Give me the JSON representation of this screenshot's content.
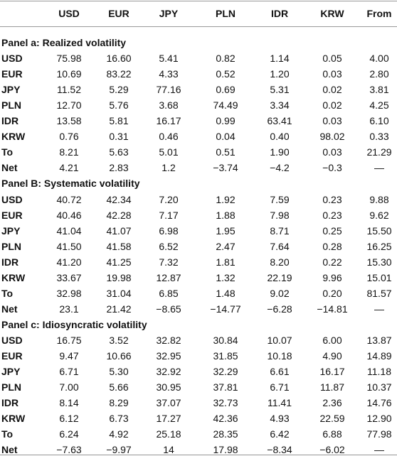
{
  "table": {
    "header": [
      "USD",
      "EUR",
      "JPY",
      "PLN",
      "IDR",
      "KRW",
      "From"
    ],
    "panels": [
      {
        "title": "Panel a: Realized volatility",
        "rows": [
          [
            "USD",
            "75.98",
            "16.60",
            "5.41",
            "0.82",
            "1.14",
            "0.05",
            "4.00"
          ],
          [
            "EUR",
            "10.69",
            "83.22",
            "4.33",
            "0.52",
            "1.20",
            "0.03",
            "2.80"
          ],
          [
            "JPY",
            "11.52",
            "5.29",
            "77.16",
            "0.69",
            "5.31",
            "0.02",
            "3.81"
          ],
          [
            "PLN",
            "12.70",
            "5.76",
            "3.68",
            "74.49",
            "3.34",
            "0.02",
            "4.25"
          ],
          [
            "IDR",
            "13.58",
            "5.81",
            "16.17",
            "0.99",
            "63.41",
            "0.03",
            "6.10"
          ],
          [
            "KRW",
            "0.76",
            "0.31",
            "0.46",
            "0.04",
            "0.40",
            "98.02",
            "0.33"
          ],
          [
            "To",
            "8.21",
            "5.63",
            "5.01",
            "0.51",
            "1.90",
            "0.03",
            "21.29"
          ],
          [
            "Net",
            "4.21",
            "2.83",
            "1.2",
            "−3.74",
            "−4.2",
            "−0.3",
            "—"
          ]
        ]
      },
      {
        "title": "Panel B: Systematic volatility",
        "rows": [
          [
            "USD",
            "40.72",
            "42.34",
            "7.20",
            "1.92",
            "7.59",
            "0.23",
            "9.88"
          ],
          [
            "EUR",
            "40.46",
            "42.28",
            "7.17",
            "1.88",
            "7.98",
            "0.23",
            "9.62"
          ],
          [
            "JPY",
            "41.04",
            "41.07",
            "6.98",
            "1.95",
            "8.71",
            "0.25",
            "15.50"
          ],
          [
            "PLN",
            "41.50",
            "41.58",
            "6.52",
            "2.47",
            "7.64",
            "0.28",
            "16.25"
          ],
          [
            "IDR",
            "41.20",
            "41.25",
            "7.32",
            "1.81",
            "8.20",
            "0.22",
            "15.30"
          ],
          [
            "KRW",
            "33.67",
            "19.98",
            "12.87",
            "1.32",
            "22.19",
            "9.96",
            "15.01"
          ],
          [
            "To",
            "32.98",
            "31.04",
            "6.85",
            "1.48",
            "9.02",
            "0.20",
            "81.57"
          ],
          [
            "Net",
            "23.1",
            "21.42",
            "−8.65",
            "−14.77",
            "−6.28",
            "−14.81",
            "—"
          ]
        ]
      },
      {
        "title": "Panel c: Idiosyncratic volatility",
        "rows": [
          [
            "USD",
            "16.75",
            "3.52",
            "32.82",
            "30.84",
            "10.07",
            "6.00",
            "13.87"
          ],
          [
            "EUR",
            "9.47",
            "10.66",
            "32.95",
            "31.85",
            "10.18",
            "4.90",
            "14.89"
          ],
          [
            "JPY",
            "6.71",
            "5.30",
            "32.92",
            "32.29",
            "6.61",
            "16.17",
            "11.18"
          ],
          [
            "PLN",
            "7.00",
            "5.66",
            "30.95",
            "37.81",
            "6.71",
            "11.87",
            "10.37"
          ],
          [
            "IDR",
            "8.14",
            "8.29",
            "37.07",
            "32.73",
            "11.41",
            "2.36",
            "14.76"
          ],
          [
            "KRW",
            "6.12",
            "6.73",
            "17.27",
            "42.36",
            "4.93",
            "22.59",
            "12.90"
          ],
          [
            "To",
            "6.24",
            "4.92",
            "25.18",
            "28.35",
            "6.42",
            "6.88",
            "77.98"
          ],
          [
            "Net",
            "−7.63",
            "−9.97",
            "14",
            "17.98",
            "−8.34",
            "−6.02",
            "—"
          ]
        ]
      }
    ]
  }
}
